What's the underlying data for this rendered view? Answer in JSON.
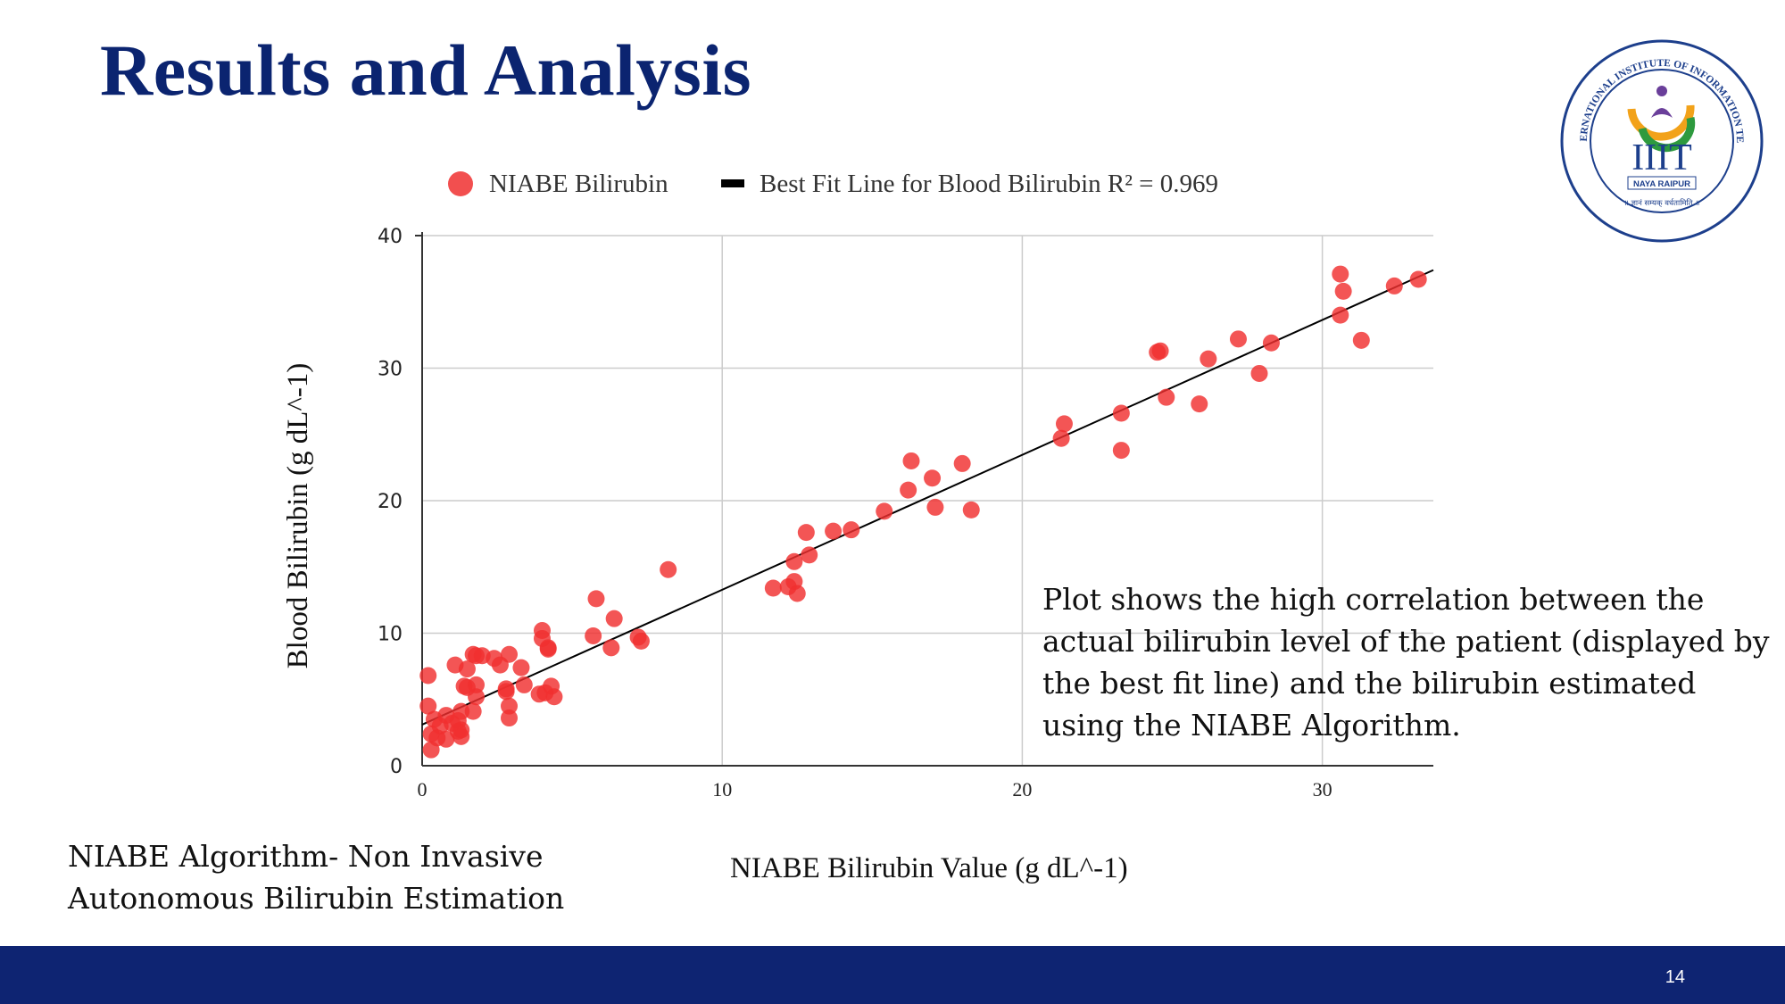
{
  "slide": {
    "title": "Results and Analysis",
    "annotation": "Plot shows the high correlation between the actual bilirubin level of the patient (displayed by the best fit line) and the bilirubin estimated using the NIABE Algorithm.",
    "footnote": "NIABE Algorithm- Non Invasive Autonomous Bilirubin Estimation",
    "page_number": "14"
  },
  "logo": {
    "ring_text": "DR. SPM INTERNATIONAL INSTITUTE OF INFORMATION TECHNOLOGY",
    "name": "IIIT",
    "location": "NAYA RAIPUR",
    "motto": "॥ ज्ञानं सम्यक् वर्धतामिति ॥"
  },
  "colors": {
    "title": "#0b2470",
    "footer": "#0e2472",
    "points": "#f03030",
    "fit_line": "#000000",
    "grid": "#cccccc"
  },
  "chart_data": {
    "type": "scatter",
    "title": "",
    "xlabel": "NIABE Bilirubin Value (g dL^-1)",
    "ylabel": "Blood Bilirubin  (g dL^-1)",
    "xlim": [
      0,
      33.7
    ],
    "ylim": [
      0,
      40
    ],
    "x_ticks": [
      0,
      10,
      20,
      30
    ],
    "y_ticks": [
      0,
      10,
      20,
      30,
      40
    ],
    "grid": true,
    "legend_position": "top",
    "legend": [
      {
        "label": "NIABE Bilirubin",
        "marker": "circle"
      },
      {
        "label": "Best Fit Line for Blood Bilirubin R² = 0.969",
        "marker": "line"
      }
    ],
    "series": [
      {
        "name": "NIABE Bilirubin",
        "points": [
          [
            0.2,
            6.8
          ],
          [
            0.2,
            4.5
          ],
          [
            0.3,
            2.4
          ],
          [
            0.3,
            1.2
          ],
          [
            0.4,
            3.5
          ],
          [
            0.5,
            2.1
          ],
          [
            0.6,
            3.0
          ],
          [
            0.8,
            2.0
          ],
          [
            0.8,
            3.8
          ],
          [
            1.0,
            3.2
          ],
          [
            1.1,
            7.6
          ],
          [
            1.2,
            3.4
          ],
          [
            1.2,
            2.6
          ],
          [
            1.3,
            2.2
          ],
          [
            1.3,
            4.1
          ],
          [
            1.3,
            2.7
          ],
          [
            1.4,
            6.0
          ],
          [
            1.5,
            7.3
          ],
          [
            1.5,
            5.9
          ],
          [
            1.7,
            8.4
          ],
          [
            1.7,
            4.1
          ],
          [
            1.8,
            8.3
          ],
          [
            1.8,
            6.1
          ],
          [
            1.8,
            5.2
          ],
          [
            2.0,
            8.3
          ],
          [
            2.4,
            8.1
          ],
          [
            2.6,
            7.6
          ],
          [
            2.8,
            5.8
          ],
          [
            2.8,
            5.6
          ],
          [
            2.9,
            3.6
          ],
          [
            2.9,
            4.5
          ],
          [
            2.9,
            8.4
          ],
          [
            3.3,
            7.4
          ],
          [
            3.4,
            6.1
          ],
          [
            3.9,
            5.4
          ],
          [
            4.0,
            10.2
          ],
          [
            4.0,
            9.6
          ],
          [
            4.1,
            5.5
          ],
          [
            4.2,
            8.9
          ],
          [
            4.2,
            8.8
          ],
          [
            4.3,
            6.0
          ],
          [
            4.4,
            5.2
          ],
          [
            5.7,
            9.8
          ],
          [
            5.8,
            12.6
          ],
          [
            6.3,
            8.9
          ],
          [
            6.4,
            11.1
          ],
          [
            7.2,
            9.7
          ],
          [
            7.3,
            9.4
          ],
          [
            8.2,
            14.8
          ],
          [
            11.7,
            13.4
          ],
          [
            12.2,
            13.5
          ],
          [
            12.4,
            15.4
          ],
          [
            12.4,
            13.9
          ],
          [
            12.5,
            13.0
          ],
          [
            12.8,
            17.6
          ],
          [
            12.9,
            15.9
          ],
          [
            13.7,
            17.7
          ],
          [
            14.3,
            17.8
          ],
          [
            15.4,
            19.2
          ],
          [
            16.2,
            20.8
          ],
          [
            16.3,
            23.0
          ],
          [
            17.0,
            21.7
          ],
          [
            17.1,
            19.5
          ],
          [
            18.0,
            22.8
          ],
          [
            18.3,
            19.3
          ],
          [
            21.3,
            24.7
          ],
          [
            21.4,
            25.8
          ],
          [
            23.3,
            23.8
          ],
          [
            23.3,
            26.6
          ],
          [
            24.5,
            31.2
          ],
          [
            24.6,
            31.3
          ],
          [
            24.8,
            27.8
          ],
          [
            25.9,
            27.3
          ],
          [
            26.2,
            30.7
          ],
          [
            27.2,
            32.2
          ],
          [
            27.9,
            29.6
          ],
          [
            28.3,
            31.9
          ],
          [
            30.6,
            34.0
          ],
          [
            30.6,
            37.1
          ],
          [
            30.7,
            35.8
          ],
          [
            31.3,
            32.1
          ],
          [
            32.4,
            36.2
          ],
          [
            33.2,
            36.7
          ]
        ]
      }
    ],
    "fit_line": {
      "name": "Best Fit Line for Blood Bilirubin R² = 0.969",
      "x": [
        0,
        33.7
      ],
      "y": [
        3.1,
        37.4
      ],
      "r_squared": 0.969
    }
  }
}
